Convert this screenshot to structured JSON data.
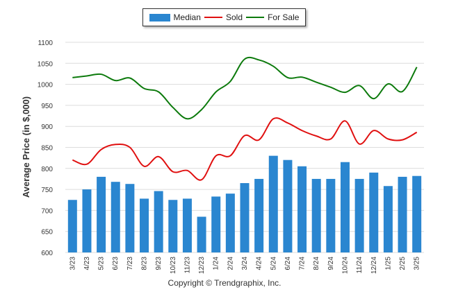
{
  "chart_data": {
    "type": "bar",
    "title": "",
    "xlabel": "",
    "ylabel": "Average Price (in $,000)",
    "ylim": [
      600,
      1100
    ],
    "yticks": [
      600,
      650,
      700,
      750,
      800,
      850,
      900,
      950,
      1000,
      1050,
      1100
    ],
    "grid": "horizontal",
    "legend_placement": "top-center",
    "categories": [
      "3/23",
      "4/23",
      "5/23",
      "6/23",
      "7/23",
      "8/23",
      "9/23",
      "10/23",
      "11/23",
      "12/23",
      "1/24",
      "2/24",
      "3/24",
      "4/24",
      "5/24",
      "6/24",
      "7/24",
      "8/24",
      "9/24",
      "10/24",
      "11/24",
      "12/24",
      "1/25",
      "2/25",
      "3/25"
    ],
    "series": [
      {
        "name": "Median",
        "kind": "bar",
        "color": "#2a86d0",
        "values": [
          725,
          750,
          780,
          768,
          763,
          728,
          746,
          725,
          728,
          685,
          733,
          740,
          765,
          775,
          830,
          820,
          805,
          775,
          775,
          815,
          775,
          790,
          758,
          780,
          782
        ]
      },
      {
        "name": "Sold",
        "kind": "line",
        "color": "#e01010",
        "values": [
          820,
          810,
          845,
          857,
          850,
          805,
          828,
          792,
          795,
          773,
          830,
          830,
          878,
          868,
          918,
          908,
          890,
          877,
          870,
          913,
          858,
          890,
          870,
          868,
          886
        ]
      },
      {
        "name": "For Sale",
        "kind": "line",
        "color": "#0c7a0c",
        "values": [
          1016,
          1020,
          1024,
          1009,
          1015,
          990,
          982,
          945,
          918,
          940,
          982,
          1007,
          1060,
          1058,
          1043,
          1016,
          1017,
          1005,
          993,
          981,
          997,
          966,
          1001,
          983,
          1041
        ]
      }
    ]
  },
  "copyright": "Copyright © Trendgraphix, Inc."
}
